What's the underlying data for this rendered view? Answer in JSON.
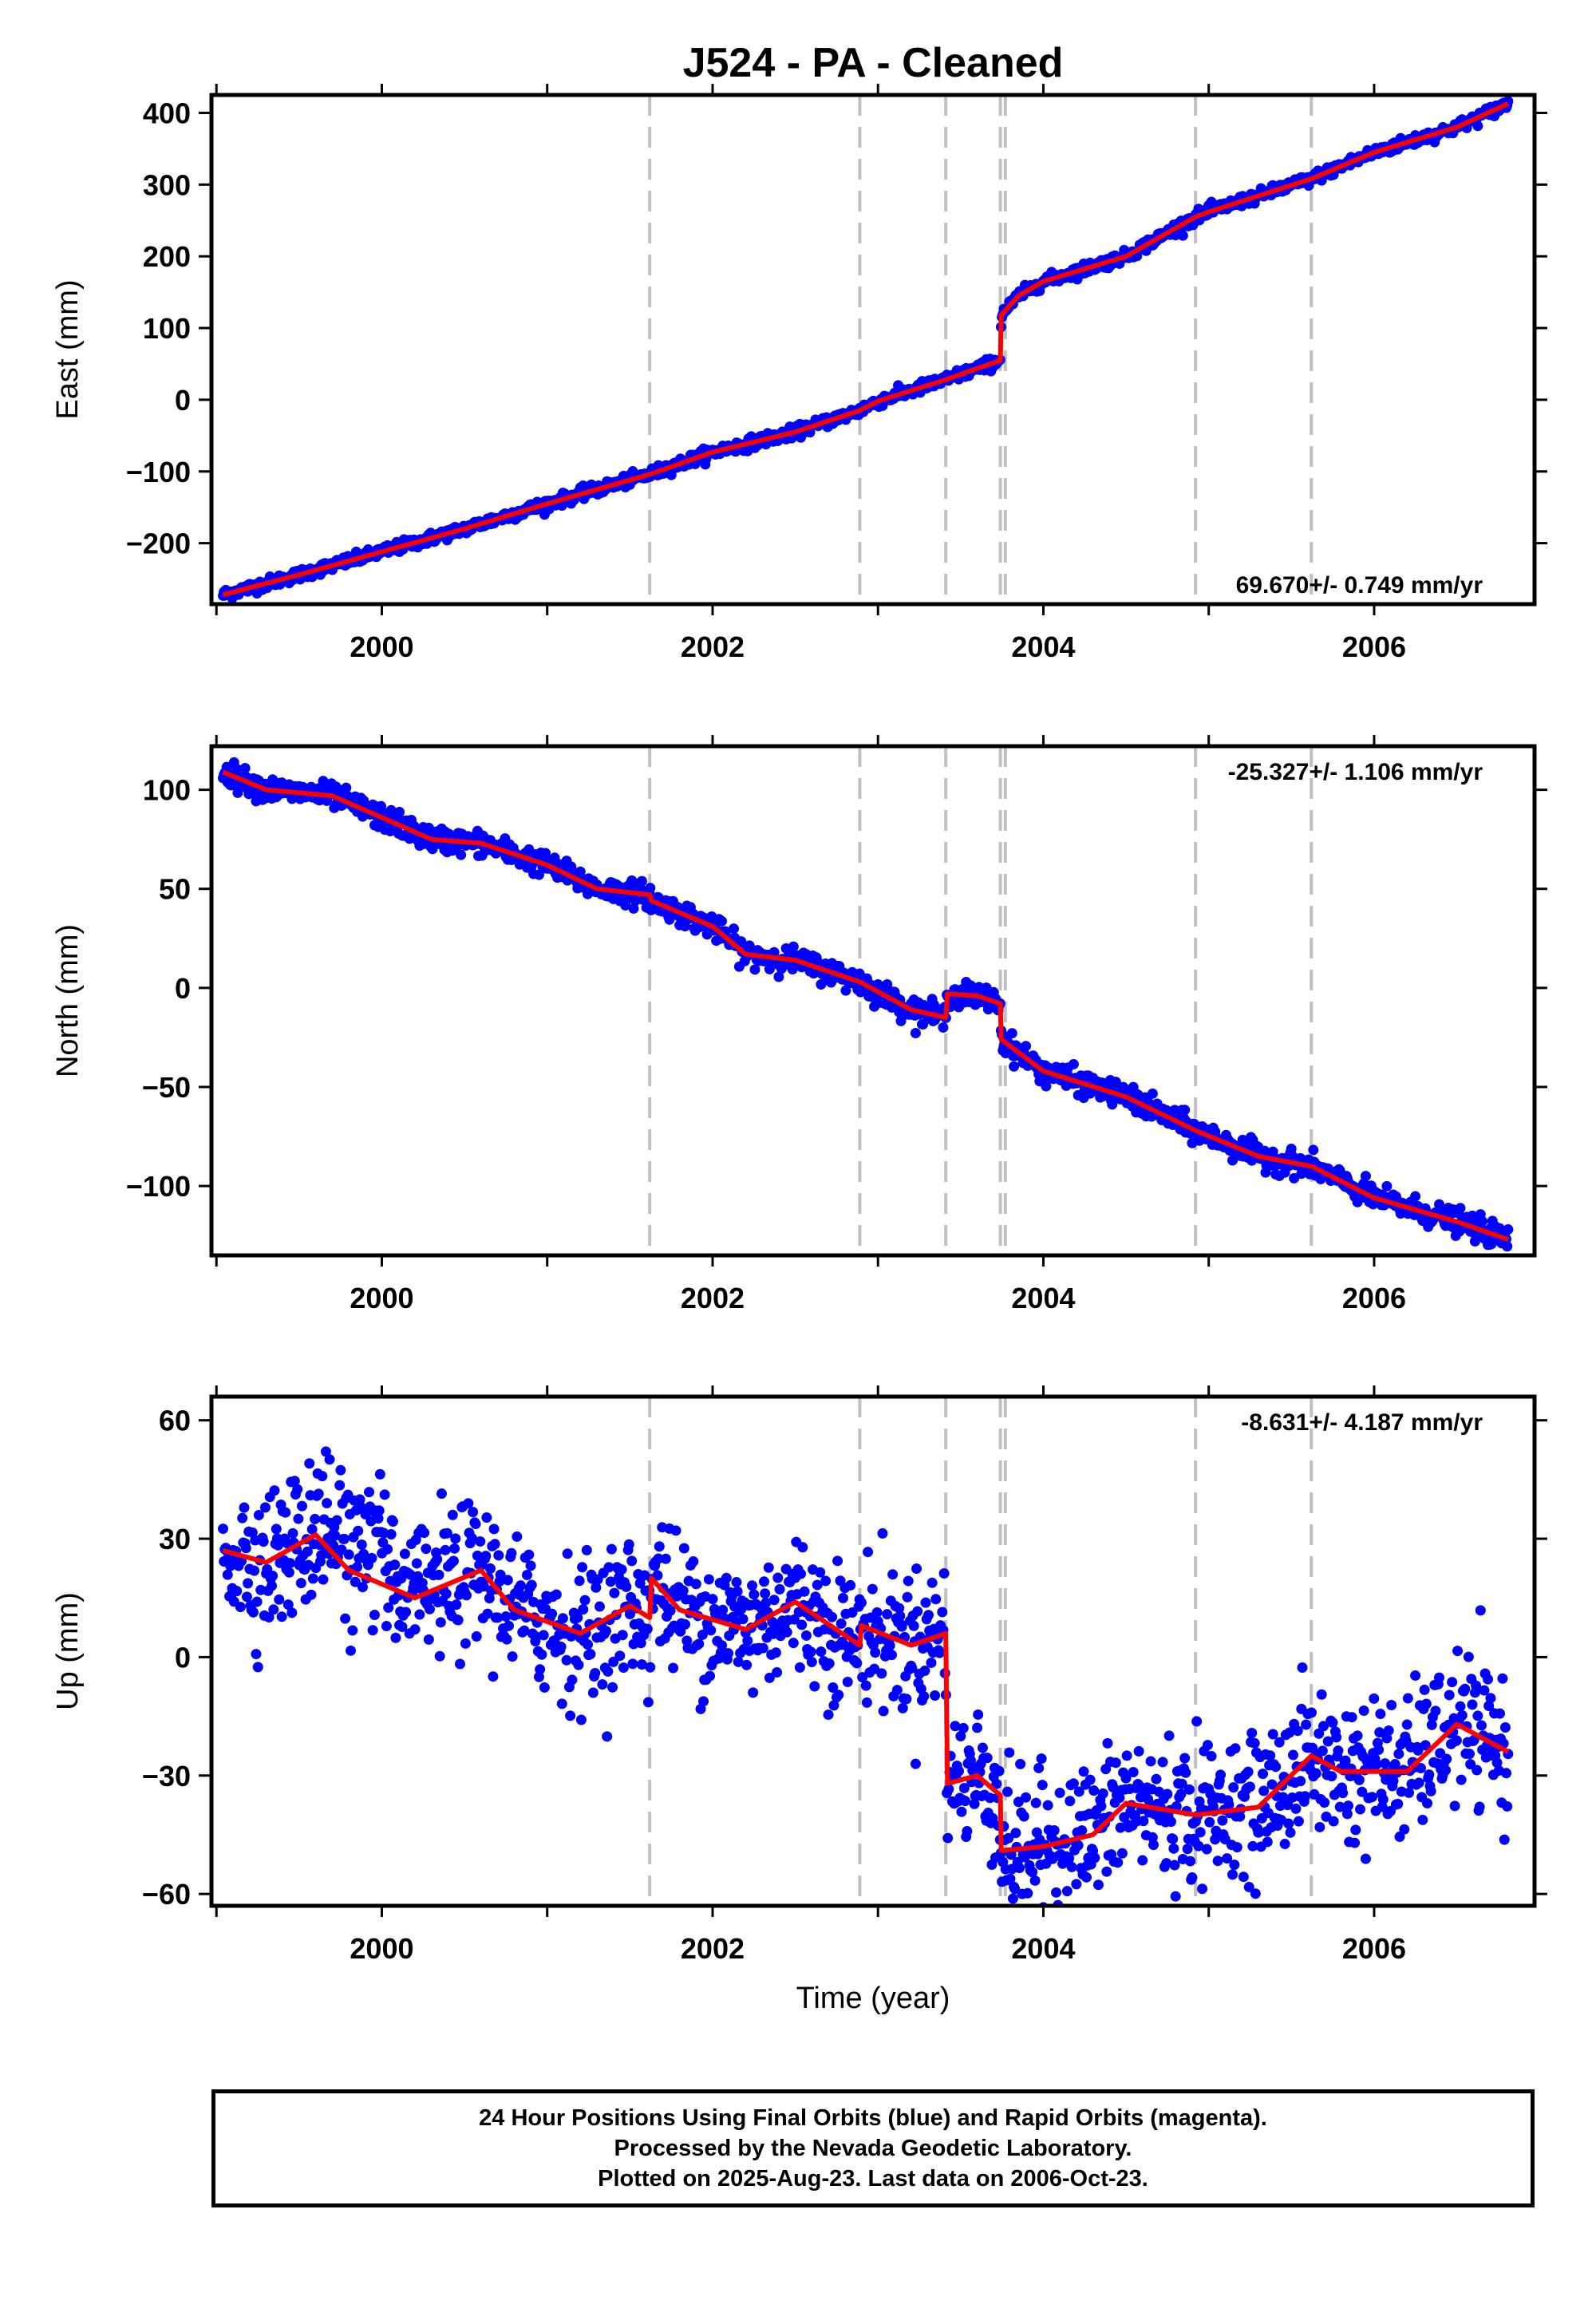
{
  "chart_data": {
    "type": "scatter",
    "title": "J524  - PA - Cleaned",
    "xlabel": "Time (year)",
    "xlim": [
      1998.97,
      2006.97
    ],
    "x_ticks": [
      2000,
      2002,
      2004,
      2006
    ],
    "vertical_dashed_lines": [
      2001.62,
      2002.89,
      2003.41,
      2003.74,
      2003.77,
      2004.92,
      2005.62
    ],
    "colors": {
      "observations": "#0000ff",
      "model": "#ff0000",
      "event_lines": "#c0c0c0"
    },
    "panels": [
      {
        "ylabel": "East (mm)",
        "ylim": [
          -285,
          425
        ],
        "y_ticks": [
          -200,
          -100,
          0,
          100,
          200,
          300,
          400
        ],
        "y_tick_labels": [
          "−200",
          "−100",
          "0",
          "100",
          "200",
          "300",
          "400"
        ],
        "rate_label": "69.670+/- 0.749 mm/yr",
        "model_line": [
          [
            1999.04,
            -272
          ],
          [
            1999.5,
            -244
          ],
          [
            2000.0,
            -212
          ],
          [
            2000.5,
            -180
          ],
          [
            2001.0,
            -145
          ],
          [
            2001.5,
            -112
          ],
          [
            2001.62,
            -104
          ],
          [
            2002.0,
            -73
          ],
          [
            2002.5,
            -45
          ],
          [
            2002.89,
            -15
          ],
          [
            2003.0,
            -2
          ],
          [
            2003.41,
            28
          ],
          [
            2003.74,
            55
          ],
          [
            2003.745,
            118
          ],
          [
            2003.85,
            145
          ],
          [
            2004.0,
            165
          ],
          [
            2004.5,
            200
          ],
          [
            2004.92,
            255
          ],
          [
            2005.0,
            262
          ],
          [
            2005.62,
            308
          ],
          [
            2006.0,
            345
          ],
          [
            2006.5,
            380
          ],
          [
            2006.81,
            413
          ]
        ],
        "scatter": {
          "noise": 4
        }
      },
      {
        "ylabel": "North (mm)",
        "ylim": [
          -135,
          122
        ],
        "y_ticks": [
          -100,
          -50,
          0,
          50,
          100
        ],
        "y_tick_labels": [
          "−100",
          "−50",
          "0",
          "50",
          "100"
        ],
        "rate_label": "-25.327+/- 1.106 mm/yr",
        "model_line": [
          [
            1999.04,
            109
          ],
          [
            1999.3,
            100
          ],
          [
            1999.7,
            97
          ],
          [
            2000.0,
            86
          ],
          [
            2000.3,
            75
          ],
          [
            2000.6,
            73
          ],
          [
            2001.0,
            62
          ],
          [
            2001.3,
            50
          ],
          [
            2001.62,
            47
          ],
          [
            2001.63,
            44
          ],
          [
            2002.0,
            31
          ],
          [
            2002.2,
            17
          ],
          [
            2002.5,
            14
          ],
          [
            2002.89,
            3
          ],
          [
            2003.2,
            -11
          ],
          [
            2003.41,
            -15
          ],
          [
            2003.42,
            -3
          ],
          [
            2003.6,
            -4
          ],
          [
            2003.74,
            -8
          ],
          [
            2003.745,
            -26
          ],
          [
            2004.0,
            -42
          ],
          [
            2004.5,
            -55
          ],
          [
            2004.92,
            -72
          ],
          [
            2005.3,
            -85
          ],
          [
            2005.62,
            -90
          ],
          [
            2006.0,
            -106
          ],
          [
            2006.5,
            -118
          ],
          [
            2006.81,
            -127
          ]
        ],
        "scatter": {
          "noise": 3
        }
      },
      {
        "ylabel": "Up (mm)",
        "ylim": [
          -63,
          66
        ],
        "y_ticks": [
          -60,
          -30,
          0,
          30,
          60
        ],
        "y_tick_labels": [
          "−60",
          "−30",
          "0",
          "30",
          "60"
        ],
        "rate_label": "-8.631+/- 4.187 mm/yr",
        "model_line": [
          [
            1999.04,
            27
          ],
          [
            1999.3,
            24
          ],
          [
            1999.6,
            31
          ],
          [
            1999.8,
            22
          ],
          [
            2000.2,
            15
          ],
          [
            2000.6,
            22
          ],
          [
            2000.8,
            12
          ],
          [
            2001.2,
            6
          ],
          [
            2001.5,
            13
          ],
          [
            2001.62,
            10
          ],
          [
            2001.63,
            20
          ],
          [
            2001.8,
            12
          ],
          [
            2002.2,
            7
          ],
          [
            2002.5,
            14
          ],
          [
            2002.89,
            3
          ],
          [
            2002.9,
            8
          ],
          [
            2003.2,
            3
          ],
          [
            2003.41,
            6
          ],
          [
            2003.42,
            -32
          ],
          [
            2003.6,
            -30
          ],
          [
            2003.74,
            -35
          ],
          [
            2003.745,
            -49
          ],
          [
            2004.0,
            -48
          ],
          [
            2004.3,
            -45
          ],
          [
            2004.5,
            -37
          ],
          [
            2004.92,
            -40
          ],
          [
            2005.3,
            -38
          ],
          [
            2005.62,
            -25
          ],
          [
            2005.8,
            -29
          ],
          [
            2006.2,
            -29
          ],
          [
            2006.5,
            -17
          ],
          [
            2006.81,
            -24
          ]
        ],
        "scatter": {
          "noise": 9
        }
      }
    ],
    "footer": [
      "24 Hour Positions Using Final Orbits (blue) and Rapid Orbits (magenta).",
      "Processed by the Nevada Geodetic Laboratory.",
      "Plotted on 2025-Aug-23. Last data on 2006-Oct-23."
    ]
  }
}
